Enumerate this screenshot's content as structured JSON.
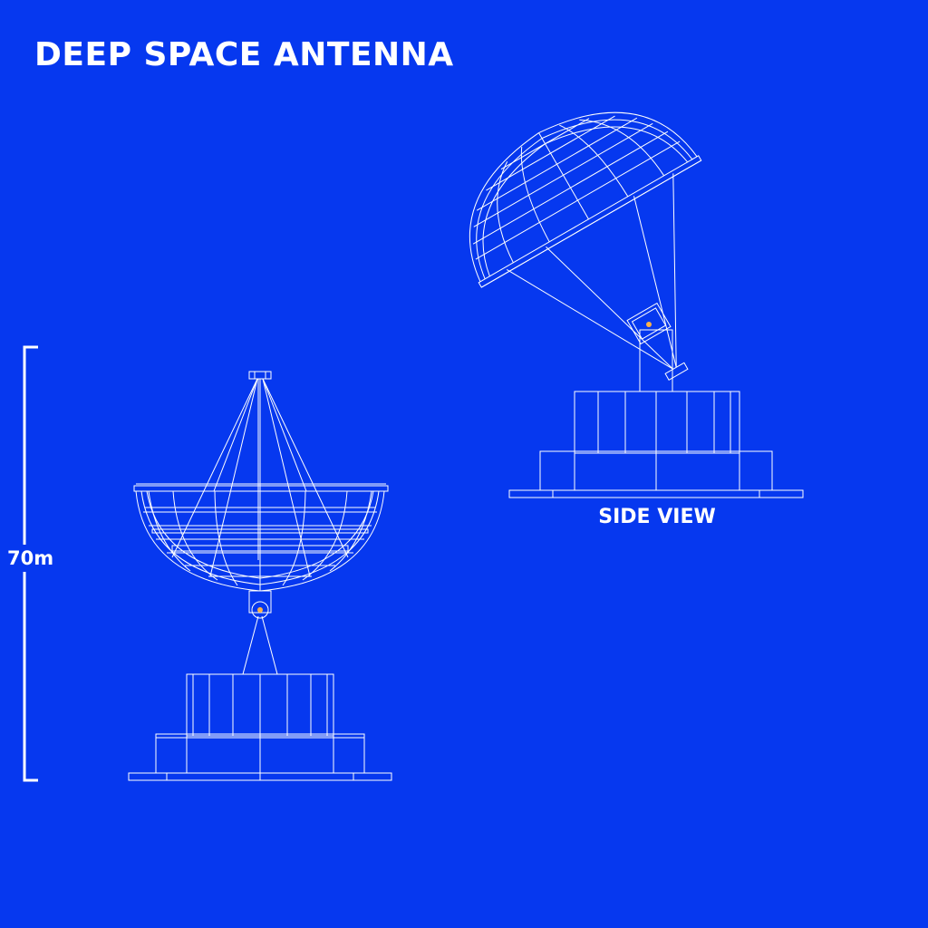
{
  "title": "DEEP SPACE ANTENNA",
  "side_view_label": "SIDE VIEW",
  "scale_label": "70m",
  "colors": {
    "background": "#0638ef",
    "line": "#ffffff",
    "pivot": "#ffb347"
  },
  "icons": [
    "front-view-antenna",
    "side-view-antenna",
    "scale-bracket"
  ]
}
